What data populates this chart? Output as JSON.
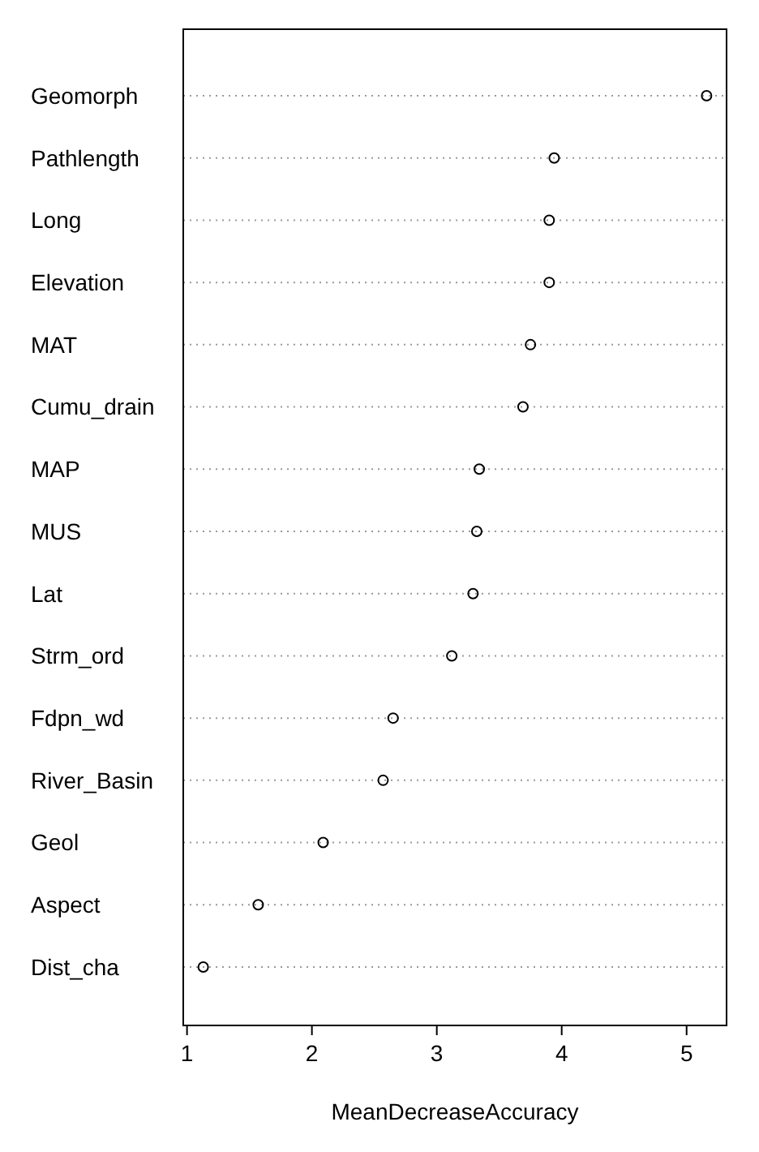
{
  "chart_data": {
    "type": "scatter",
    "orientation": "horizontal",
    "xlabel": "MeanDecreaseAccuracy",
    "categories": [
      "Geomorph",
      "Pathlength",
      "Long",
      "Elevation",
      "MAT",
      "Cumu_drain",
      "MAP",
      "MUS",
      "Lat",
      "Strm_ord",
      "Fdpn_wd",
      "River_Basin",
      "Geol",
      "Aspect",
      "Dist_cha"
    ],
    "values": [
      5.16,
      3.94,
      3.9,
      3.9,
      3.75,
      3.69,
      3.34,
      3.32,
      3.29,
      3.12,
      2.65,
      2.57,
      2.09,
      1.57,
      1.13
    ],
    "color": "#000000",
    "marker": "circle",
    "grid": "y",
    "xlim": [
      0.97,
      5.32
    ],
    "xticks": [
      1,
      2,
      3,
      4,
      5
    ]
  }
}
